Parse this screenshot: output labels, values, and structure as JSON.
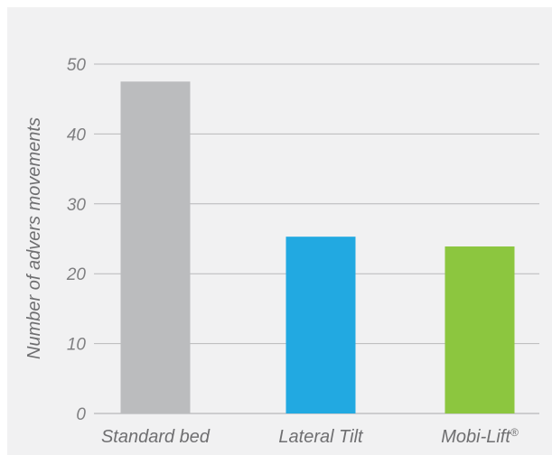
{
  "chart_data": {
    "type": "bar",
    "categories": [
      "Standard bed",
      "Lateral Tilt",
      "Mobi-Lift®"
    ],
    "values": [
      47.5,
      25.3,
      23.9
    ],
    "colors": [
      "#bbbcbe",
      "#22a9e1",
      "#8cc63f"
    ],
    "title": "",
    "xlabel": "",
    "ylabel": "Number of advers movements",
    "ylim": [
      0,
      50
    ],
    "yticks": [
      0,
      10,
      20,
      30,
      40,
      50
    ],
    "grid": true,
    "grid_color": "#b8b8ba",
    "background": "#f1f1f2"
  }
}
